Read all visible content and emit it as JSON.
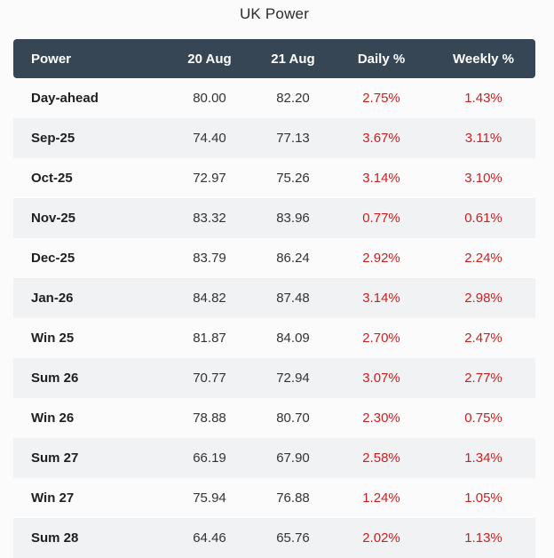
{
  "title": "UK Power",
  "colors": {
    "header_bg": "#364654",
    "header_text": "#ffffff",
    "row_alt_bg": "#f1f2f4",
    "percent_text": "#cc1f1f"
  },
  "table": {
    "headers": [
      "Power",
      "20 Aug",
      "21 Aug",
      "Daily %",
      "Weekly %"
    ],
    "rows": [
      {
        "name": "Day-ahead",
        "aug20": "80.00",
        "aug21": "82.20",
        "daily": "2.75%",
        "weekly": "1.43%"
      },
      {
        "name": "Sep-25",
        "aug20": "74.40",
        "aug21": "77.13",
        "daily": "3.67%",
        "weekly": "3.11%"
      },
      {
        "name": "Oct-25",
        "aug20": "72.97",
        "aug21": "75.26",
        "daily": "3.14%",
        "weekly": "3.10%"
      },
      {
        "name": "Nov-25",
        "aug20": "83.32",
        "aug21": "83.96",
        "daily": "0.77%",
        "weekly": "0.61%"
      },
      {
        "name": "Dec-25",
        "aug20": "83.79",
        "aug21": "86.24",
        "daily": "2.92%",
        "weekly": "2.24%"
      },
      {
        "name": "Jan-26",
        "aug20": "84.82",
        "aug21": "87.48",
        "daily": "3.14%",
        "weekly": "2.98%"
      },
      {
        "name": "Win 25",
        "aug20": "81.87",
        "aug21": "84.09",
        "daily": "2.70%",
        "weekly": "2.47%"
      },
      {
        "name": "Sum 26",
        "aug20": "70.77",
        "aug21": "72.94",
        "daily": "3.07%",
        "weekly": "2.77%"
      },
      {
        "name": "Win 26",
        "aug20": "78.88",
        "aug21": "80.70",
        "daily": "2.30%",
        "weekly": "0.75%"
      },
      {
        "name": "Sum 27",
        "aug20": "66.19",
        "aug21": "67.90",
        "daily": "2.58%",
        "weekly": "1.34%"
      },
      {
        "name": "Win 27",
        "aug20": "75.94",
        "aug21": "76.88",
        "daily": "1.24%",
        "weekly": "1.05%"
      },
      {
        "name": "Sum 28",
        "aug20": "64.46",
        "aug21": "65.76",
        "daily": "2.02%",
        "weekly": "1.13%"
      }
    ]
  }
}
